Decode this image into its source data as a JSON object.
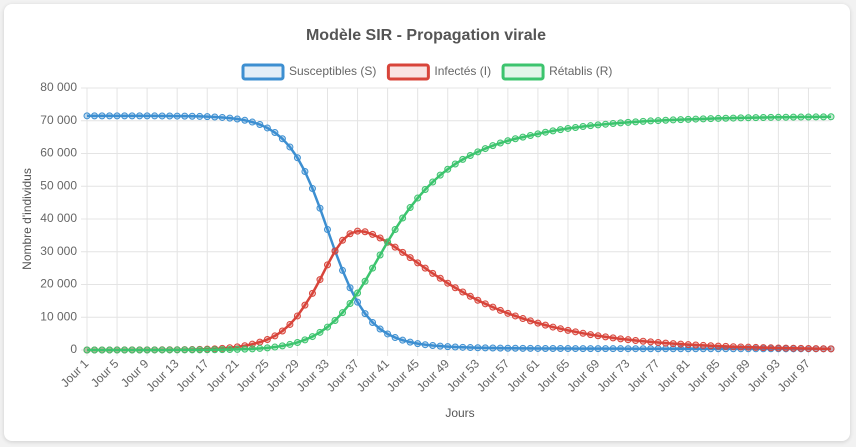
{
  "chart_data": {
    "type": "line",
    "title": "Modèle SIR - Propagation virale",
    "x_label": "Jours",
    "y_label": "Nombre d'individus",
    "grid": true,
    "legend": "top",
    "ylim": [
      0,
      80000
    ],
    "yticks": [
      0,
      {
        "value": 10000,
        "label": "10 000"
      },
      {
        "value": 20000,
        "label": "20 000"
      },
      {
        "value": 30000,
        "label": "30 000"
      },
      {
        "value": 40000,
        "label": "40 000"
      },
      {
        "value": 50000,
        "label": "50 000"
      },
      {
        "value": 60000,
        "label": "60 000"
      },
      {
        "value": 70000,
        "label": "70 000"
      },
      {
        "value": 80000,
        "label": "80 000"
      }
    ],
    "categories": [
      "Jour 1",
      null,
      null,
      null,
      "Jour 5",
      null,
      null,
      null,
      "Jour 9",
      null,
      null,
      null,
      "Jour 13",
      null,
      null,
      null,
      "Jour 17",
      null,
      null,
      null,
      "Jour 21",
      null,
      null,
      null,
      "Jour 25",
      null,
      null,
      null,
      "Jour 29",
      null,
      null,
      null,
      "Jour 33",
      null,
      null,
      null,
      "Jour 37",
      null,
      null,
      null,
      "Jour 41",
      null,
      null,
      null,
      "Jour 45",
      null,
      null,
      null,
      "Jour 49",
      null,
      null,
      null,
      "Jour 53",
      null,
      null,
      null,
      "Jour 57",
      null,
      null,
      null,
      "Jour 61",
      null,
      null,
      null,
      "Jour 65",
      null,
      null,
      null,
      "Jour 69",
      null,
      null,
      null,
      "Jour 73",
      null,
      null,
      null,
      "Jour 77",
      null,
      null,
      null,
      "Jour 81",
      null,
      null,
      null,
      "Jour 85",
      null,
      null,
      null,
      "Jour 89",
      null,
      null,
      null,
      "Jour 93",
      null,
      null,
      null,
      "Jour 97",
      null,
      null,
      null
    ],
    "series": [
      {
        "name": "Susceptibles (S)",
        "color": "#3d8fd1",
        "values": [
          71500,
          71499,
          71498,
          71497,
          71495,
          71493,
          71490,
          71486,
          71480,
          71472,
          71462,
          71448,
          71430,
          71405,
          71370,
          71320,
          71250,
          71150,
          71010,
          70810,
          70530,
          70140,
          69600,
          68850,
          67800,
          66400,
          64500,
          62000,
          58700,
          54500,
          49300,
          43300,
          36800,
          30300,
          24300,
          19000,
          14600,
          11100,
          8400,
          6400,
          4900,
          3800,
          3000,
          2400,
          1950,
          1620,
          1370,
          1180,
          1030,
          910,
          820,
          750,
          690,
          640,
          600,
          570,
          545,
          525,
          505,
          490,
          477,
          466,
          456,
          447,
          439,
          432,
          426,
          420,
          415,
          410,
          406,
          402,
          398,
          395,
          392,
          389,
          386,
          384,
          382,
          380,
          378,
          376,
          374,
          372,
          371,
          370,
          369,
          368,
          367,
          366,
          365,
          364,
          363,
          362,
          361,
          360,
          359,
          358,
          358,
          357
        ]
      },
      {
        "name": "Infectés (I)",
        "color": "#d8443a",
        "values": [
          10,
          12,
          14,
          17,
          20,
          24,
          29,
          35,
          42,
          51,
          62,
          75,
          91,
          110,
          140,
          190,
          260,
          360,
          500,
          690,
          950,
          1300,
          1780,
          2400,
          3200,
          4300,
          5800,
          7800,
          10400,
          13700,
          17300,
          21500,
          26000,
          30200,
          33500,
          35500,
          36300,
          36100,
          35300,
          34200,
          32900,
          31400,
          29800,
          28200,
          26600,
          25000,
          23400,
          21900,
          20400,
          19000,
          17700,
          16400,
          15200,
          14100,
          13100,
          12100,
          11200,
          10400,
          9600,
          8900,
          8200,
          7600,
          7000,
          6500,
          6000,
          5550,
          5100,
          4700,
          4350,
          4000,
          3700,
          3400,
          3150,
          2900,
          2680,
          2470,
          2280,
          2100,
          1940,
          1790,
          1650,
          1520,
          1400,
          1290,
          1190,
          1100,
          1010,
          930,
          860,
          790,
          730,
          670,
          620,
          570,
          530,
          490,
          450,
          415,
          380,
          350
        ]
      },
      {
        "name": "Rétablis (R)",
        "color": "#3cc46e",
        "values": [
          0,
          1,
          2,
          3,
          4,
          5,
          6,
          8,
          10,
          12,
          15,
          19,
          24,
          30,
          38,
          48,
          62,
          80,
          105,
          140,
          190,
          260,
          350,
          480,
          660,
          900,
          1250,
          1700,
          2300,
          3100,
          4100,
          5400,
          7000,
          9000,
          11400,
          14200,
          17400,
          21000,
          25000,
          29000,
          33000,
          36800,
          40300,
          43500,
          46400,
          49000,
          51300,
          53400,
          55200,
          56800,
          58200,
          59400,
          60500,
          61500,
          62400,
          63200,
          63900,
          64500,
          65000,
          65500,
          66000,
          66500,
          66900,
          67300,
          67650,
          67950,
          68250,
          68500,
          68750,
          68950,
          69150,
          69350,
          69500,
          69650,
          69800,
          69950,
          70050,
          70150,
          70250,
          70350,
          70430,
          70510,
          70580,
          70650,
          70710,
          70770,
          70820,
          70870,
          70910,
          70950,
          70990,
          71020,
          71050,
          71080,
          71110,
          71130,
          71150,
          71170,
          71190,
          71210
        ]
      }
    ]
  }
}
